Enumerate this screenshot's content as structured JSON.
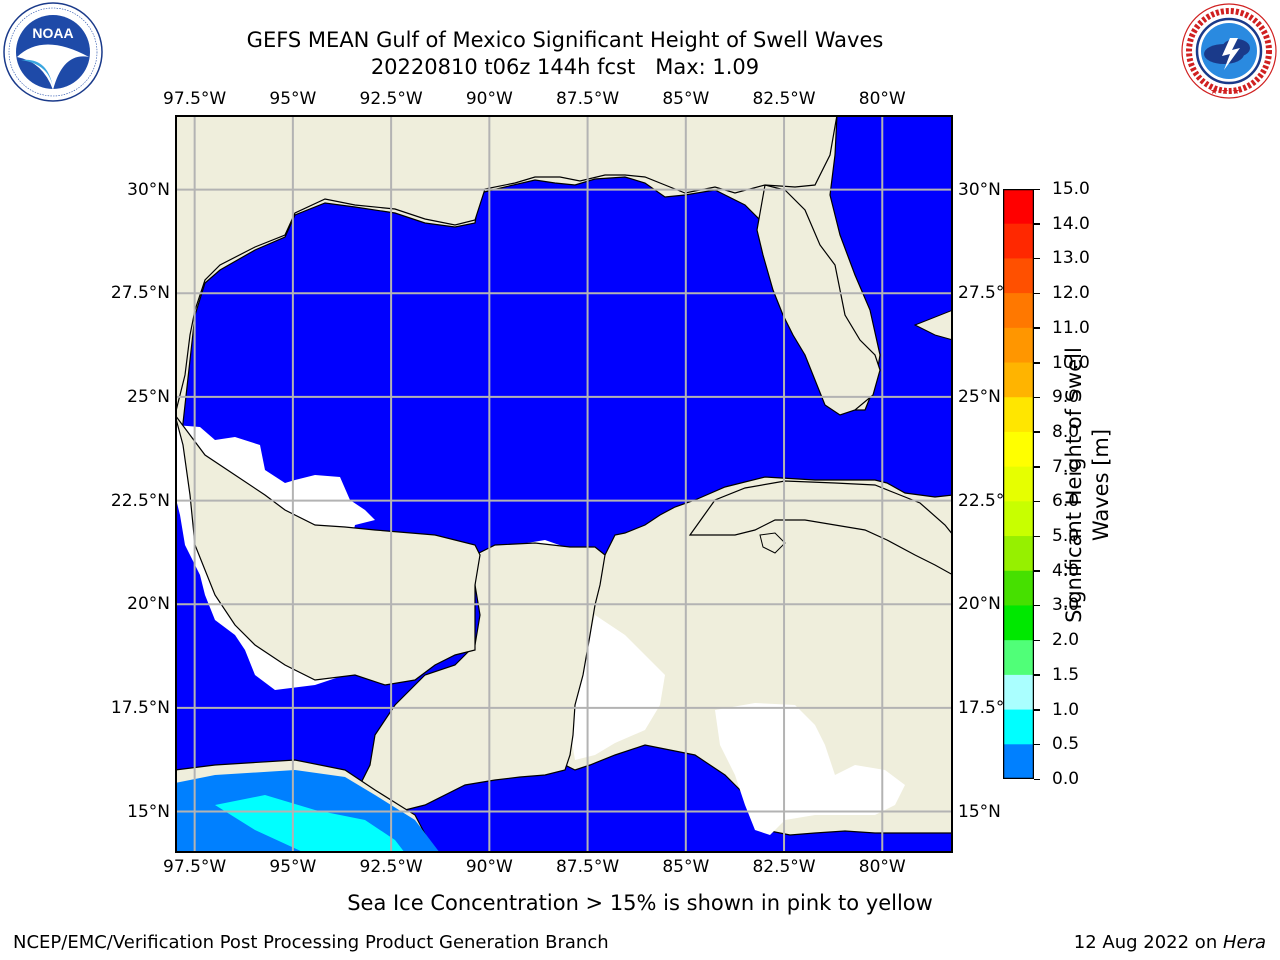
{
  "title": {
    "line1": "GEFS MEAN Gulf of Mexico Significant Height of Swell Waves",
    "line2": "20220810 t06z 144h fcst   Max: 1.09"
  },
  "logos": {
    "left": {
      "name": "noaa-logo",
      "text": "NOAA",
      "ring_text": "NATIONAL OCEANIC AND ATMOSPHERIC ADMINISTRATION · U.S. DEPARTMENT OF COMMERCE"
    },
    "right": {
      "name": "nws-logo",
      "ring_text": "NATIONAL WEATHER SERVICE"
    }
  },
  "map": {
    "lon_ticks": [
      "97.5°W",
      "95°W",
      "92.5°W",
      "90°W",
      "87.5°W",
      "85°W",
      "82.5°W",
      "80°W"
    ],
    "lon_values": [
      -97.5,
      -95,
      -92.5,
      -90,
      -87.5,
      -85,
      -82.5,
      -80
    ],
    "lat_ticks_left": [
      "30°N",
      "27.5°N",
      "25°N",
      "22.5°N",
      "20°N",
      "17.5°N",
      "15°N"
    ],
    "lat_ticks_right": [
      "30°N",
      "27.5°",
      "25°N",
      "22.5°",
      "20°N",
      "17.5°",
      "15°N"
    ],
    "lat_values": [
      30,
      27.5,
      25,
      22.5,
      20,
      17.5,
      15
    ],
    "extent": {
      "lon": [
        -98,
        -78.2
      ],
      "lat": [
        14,
        31.8
      ]
    },
    "colors": {
      "land": "#efeedc",
      "ocean_low": "#0000ff",
      "no_data": "#ffffff",
      "grid": "#b3b3b3",
      "coast": "#000000"
    }
  },
  "colorbar": {
    "title_line1": "Significant Height of Swell",
    "title_line2": "Waves [m]",
    "labels": [
      "15.0",
      "14.0",
      "13.0",
      "12.0",
      "11.0",
      "10.0",
      "9.0",
      "8.0",
      "7.0",
      "6.0",
      "5.0",
      "4.0",
      "3.0",
      "2.0",
      "1.5",
      "1.0",
      "0.5",
      "0.0"
    ],
    "colors": [
      "#ff0000",
      "#ff2800",
      "#ff5000",
      "#ff7800",
      "#ff9600",
      "#ffb400",
      "#ffe600",
      "#ffff00",
      "#e6ff00",
      "#c8ff00",
      "#96f000",
      "#46e000",
      "#00e800",
      "#50ff78",
      "#aaffff",
      "#00ffff",
      "#0080ff",
      "#0000ff"
    ]
  },
  "subtitle": "Sea Ice Concentration > 15% is shown in pink to yellow",
  "footer": {
    "left": "NCEP/EMC/Verification Post Processing Product Generation Branch",
    "right_prefix": "12 Aug 2022 on ",
    "right_host": "Hera"
  }
}
